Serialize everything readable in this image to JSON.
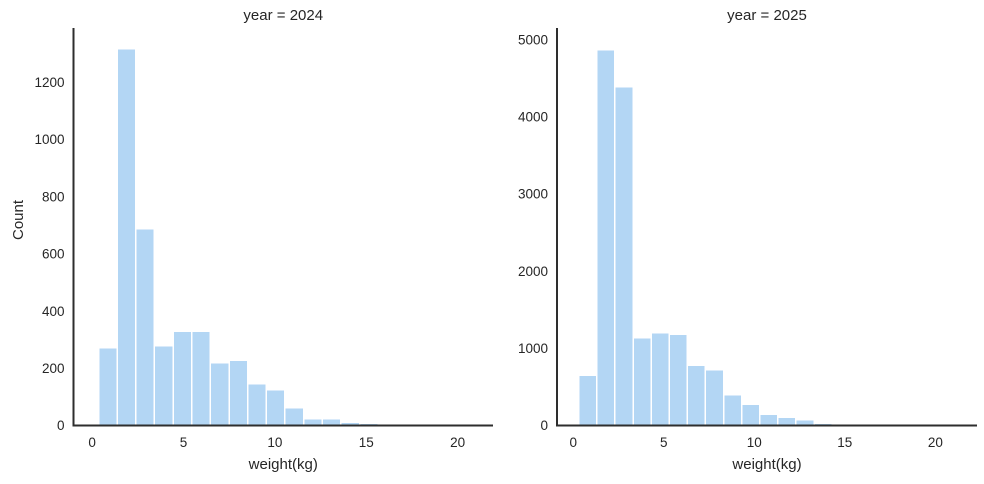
{
  "figure": {
    "background": "#ffffff",
    "bar_fill": "#b3d6f4",
    "bar_edge": "#ffffff",
    "spine_color": "#2e2e2e",
    "text_color": "#262626"
  },
  "chart_data": [
    {
      "type": "bar",
      "kind": "histogram",
      "title": "year = 2024",
      "xlabel": "weight(kg)",
      "ylabel": "Count",
      "xlim": [
        -1.02,
        21.93
      ],
      "ylim": [
        0,
        1390
      ],
      "xticks": [
        0,
        5,
        10,
        15,
        20
      ],
      "yticks": [
        0,
        200,
        400,
        600,
        800,
        1000,
        1200
      ],
      "grid": false,
      "legend_position": "none",
      "bin_start": 0.35,
      "bin_width": 1.02,
      "values": [
        270,
        1315,
        686,
        278,
        328,
        328,
        218,
        226,
        145,
        123,
        60,
        21,
        22,
        10,
        7
      ]
    },
    {
      "type": "bar",
      "kind": "histogram",
      "title": "year = 2025",
      "xlabel": "weight(kg)",
      "ylabel": "",
      "xlim": [
        -0.9,
        22.3
      ],
      "ylim": [
        0,
        5150
      ],
      "xticks": [
        0,
        5,
        10,
        15,
        20
      ],
      "yticks": [
        0,
        1000,
        2000,
        3000,
        4000,
        5000
      ],
      "grid": false,
      "legend_position": "none",
      "bin_start": 0.3,
      "bin_width": 1.0,
      "values": [
        647,
        4860,
        4380,
        1130,
        1195,
        1175,
        775,
        715,
        390,
        268,
        138,
        99,
        65,
        22
      ]
    }
  ]
}
